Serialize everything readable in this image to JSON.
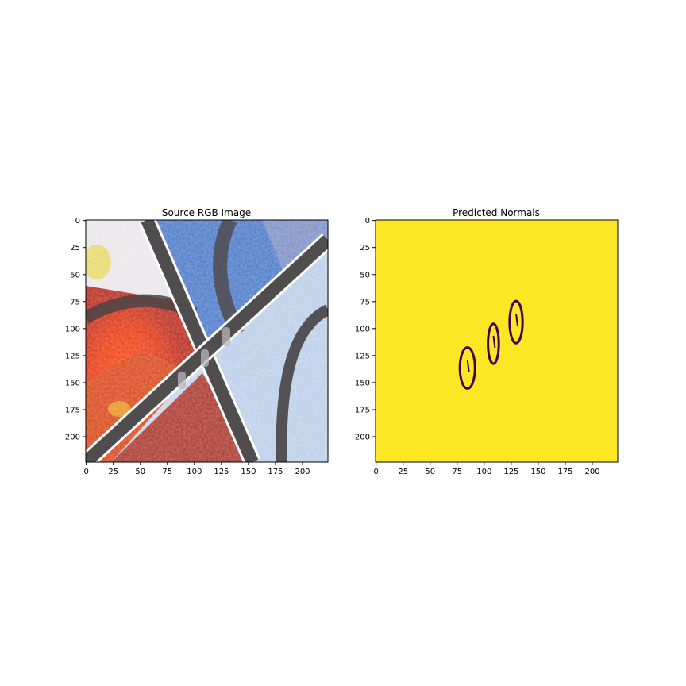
{
  "chart_data": [
    {
      "type": "image",
      "title": "Source RGB Image",
      "xticks": [
        "0",
        "25",
        "50",
        "75",
        "100",
        "125",
        "150",
        "175",
        "200"
      ],
      "yticks": [
        "0",
        "25",
        "50",
        "75",
        "100",
        "125",
        "150",
        "175",
        "200"
      ],
      "xlim": [
        0,
        224
      ],
      "ylim": [
        224,
        0
      ],
      "content": "colorful graffiti wall photo with a dark metal frame (diagonal bars) in front, and three small objects near the center"
    },
    {
      "type": "heatmap",
      "title": "Predicted Normals",
      "xticks": [
        "0",
        "25",
        "50",
        "75",
        "100",
        "125",
        "150",
        "175",
        "200"
      ],
      "yticks": [
        "0",
        "25",
        "50",
        "75",
        "100",
        "125",
        "150",
        "175",
        "200"
      ],
      "xlim": [
        0,
        224
      ],
      "ylim": [
        224,
        0
      ],
      "colormap": "viridis",
      "background_color": "#fde725",
      "outline_color": "#440154",
      "regions": [
        {
          "x_range": [
            78,
            92
          ],
          "y_range": [
            118,
            156
          ]
        },
        {
          "x_range": [
            104,
            114
          ],
          "y_range": [
            96,
            133
          ]
        },
        {
          "x_range": [
            124,
            136
          ],
          "y_range": [
            75,
            114
          ]
        }
      ]
    }
  ]
}
